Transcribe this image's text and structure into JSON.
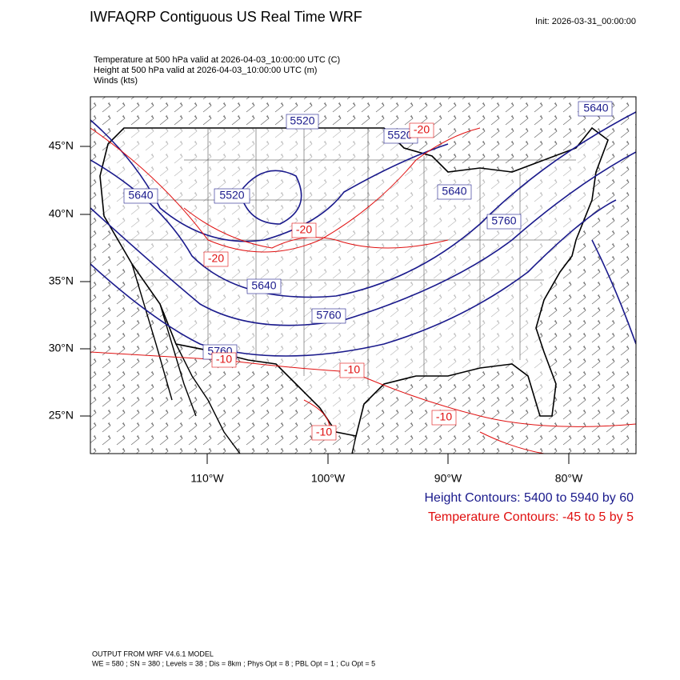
{
  "header": {
    "title": "IWFAQRP Contiguous US Real Time WRF",
    "init": "Init: 2026-03-31_00:00:00"
  },
  "fields": [
    "Temperature at 500 hPa valid at 2026-04-03_10:00:00 UTC   (C)",
    "Height at 500 hPa valid at 2026-04-03_10:00:00 UTC   (m)",
    "Winds   (kts)"
  ],
  "map": {
    "lat_labels": [
      "45°N",
      "40°N",
      "35°N",
      "30°N",
      "25°N"
    ],
    "lon_labels": [
      "110°W",
      "100°W",
      "90°W",
      "80°W"
    ],
    "height_labels": [
      "5520",
      "5520",
      "5640",
      "5640",
      "5520",
      "5640",
      "5760",
      "5640",
      "5760",
      "5760"
    ],
    "temp_labels": [
      "-20",
      "-20",
      "-20",
      "-10",
      "-10",
      "-10",
      "-10"
    ]
  },
  "legend": {
    "height": "Height Contours: 5400 to 5940 by 60",
    "temperature": "Temperature Contours: -45 to 5 by 5"
  },
  "footer": {
    "model": "OUTPUT FROM WRF V4.6.1 MODEL",
    "settings": "WE = 580 ; SN = 380 ; Levels = 38 ; Dis = 8km ; Phys Opt = 8 ; PBL Opt = 1 ; Cu Opt = 5"
  }
}
